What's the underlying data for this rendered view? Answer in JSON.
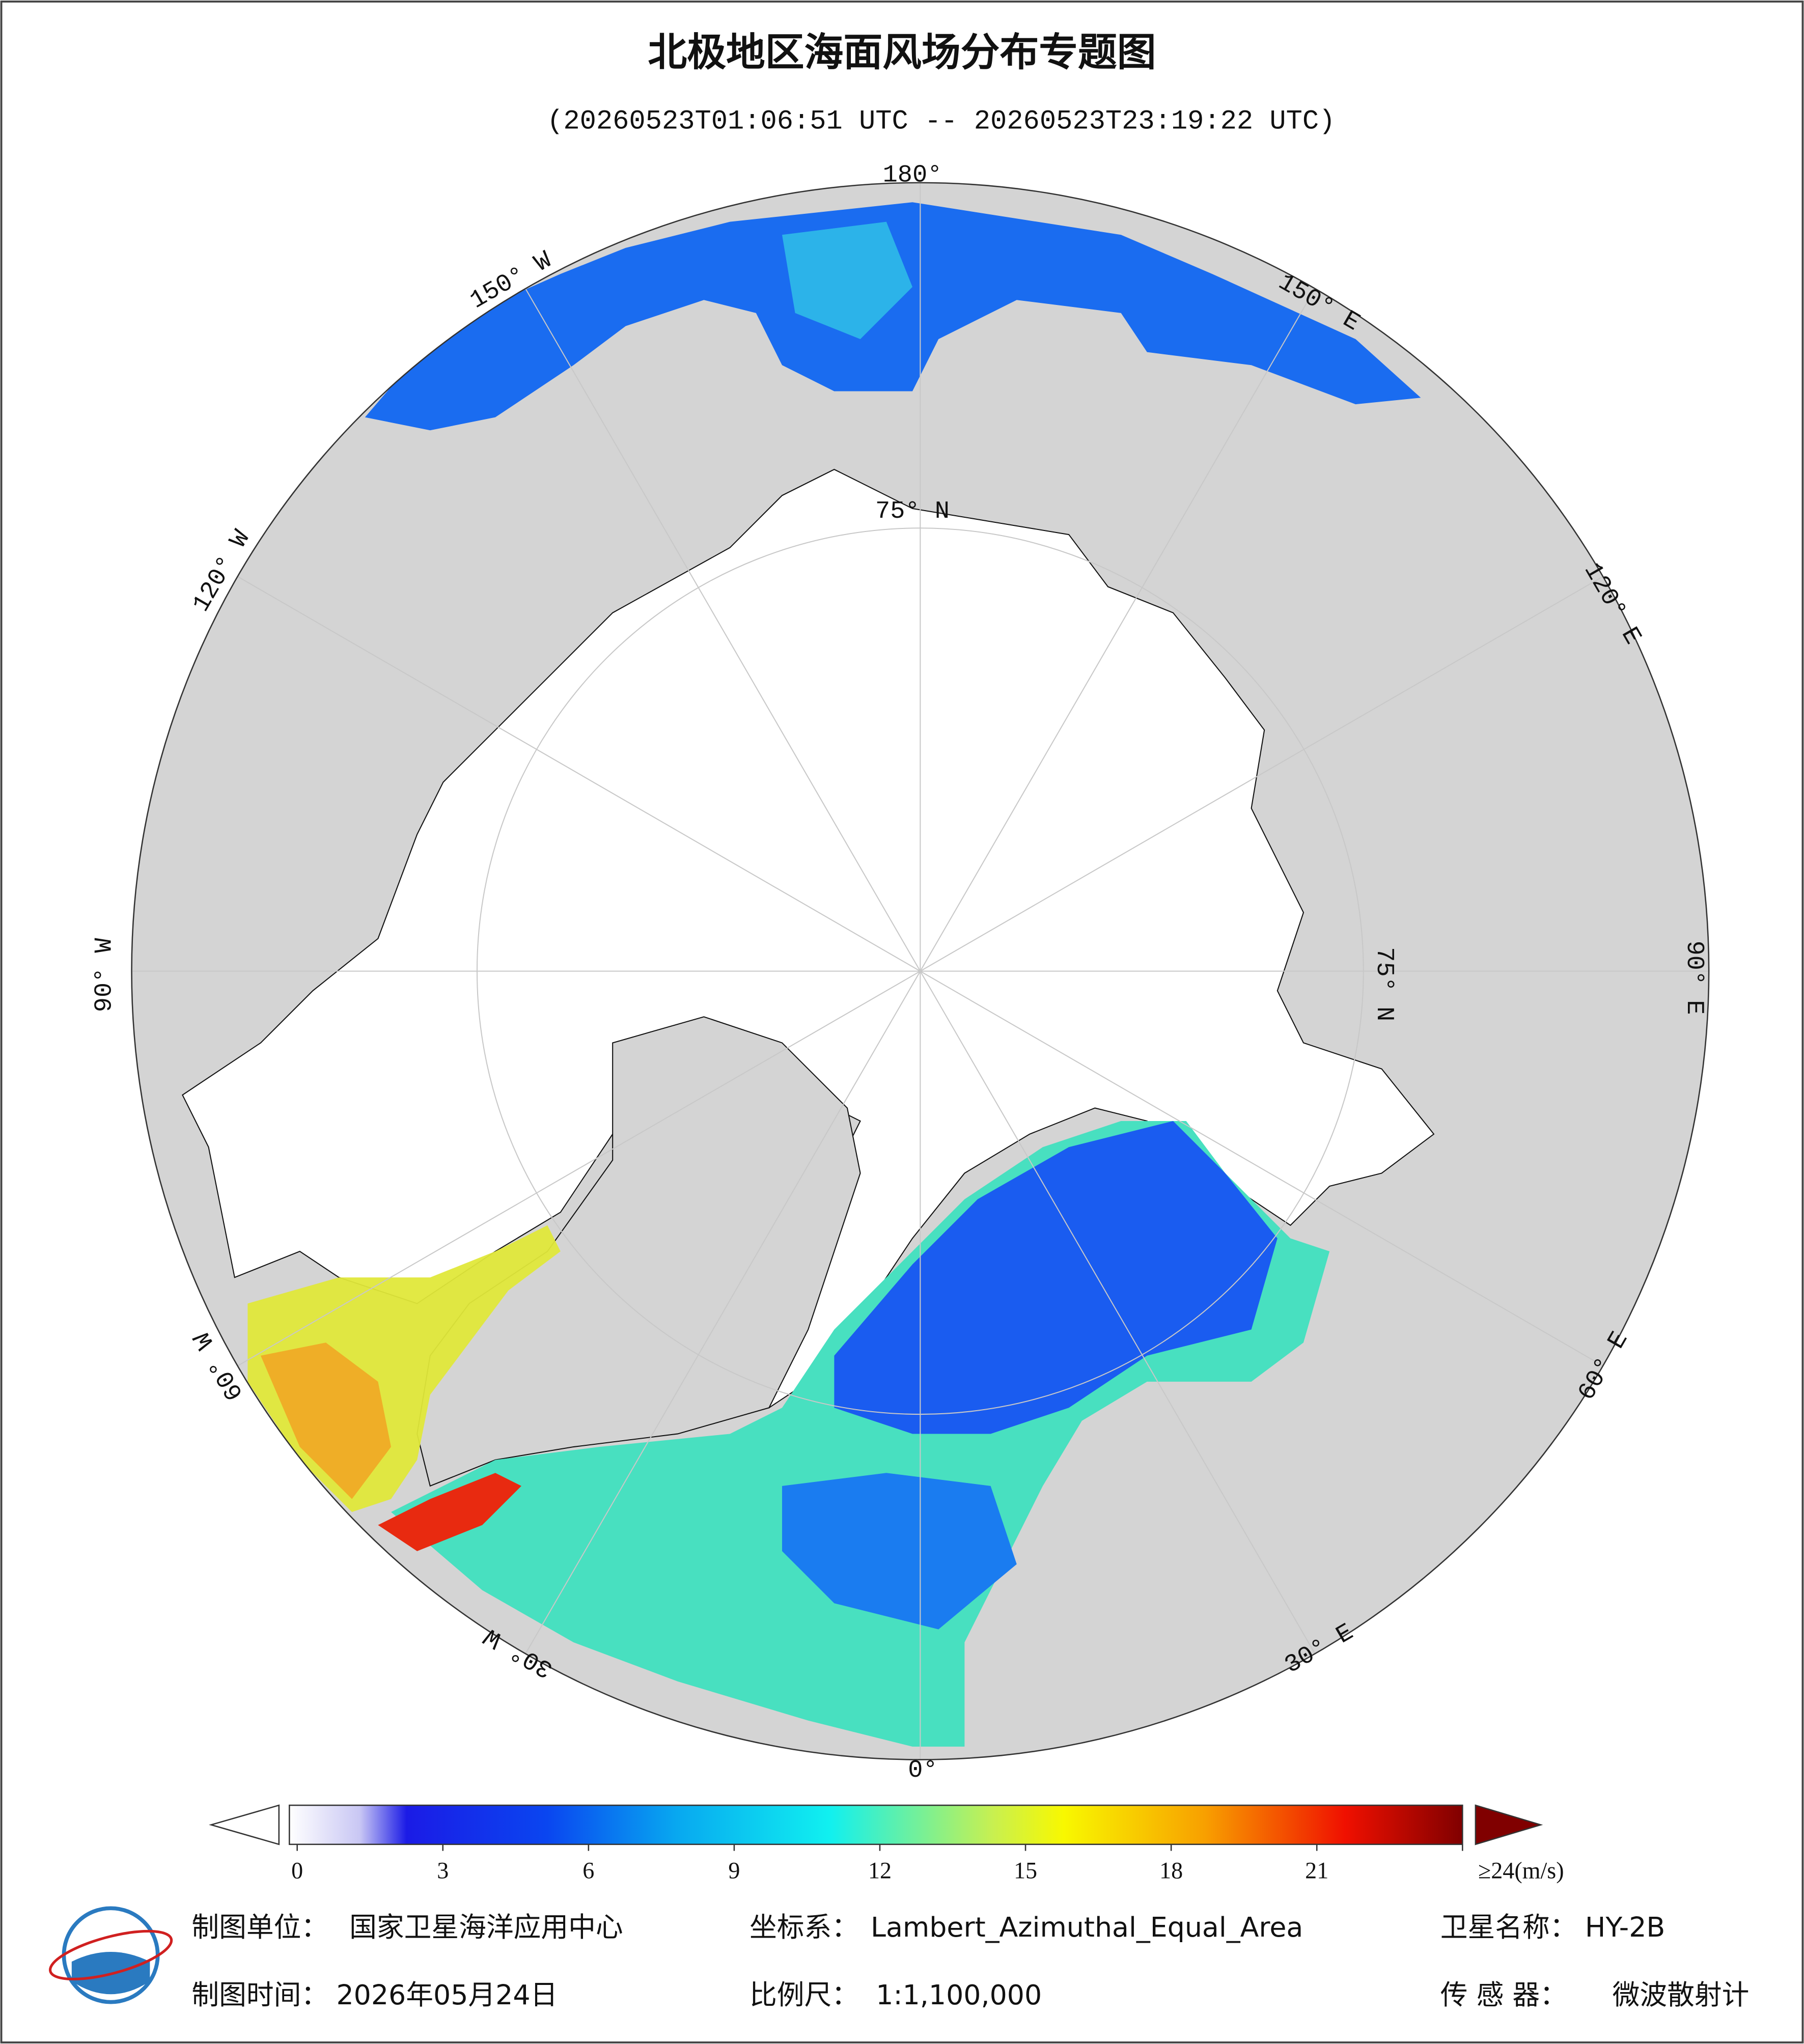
{
  "header": {
    "title": "北极地区海面风场分布专题图",
    "subtitle": "(20260523T01:06:51 UTC -- 20260523T23:19:22 UTC)"
  },
  "map": {
    "longitude_labels": [
      "180°",
      "150° E",
      "120° E",
      "90° E",
      "60° E",
      "30° E",
      "0°",
      "30° W",
      "60° W",
      "90° W",
      "120° W",
      "150° W"
    ],
    "latitude_labels": [
      "75° N",
      "75° N"
    ]
  },
  "colorbar": {
    "range": [
      0,
      24
    ],
    "ticks": [
      0,
      3,
      6,
      9,
      12,
      15,
      18,
      21,
      {
        "value": 24,
        "label": "≥24(m/s)"
      }
    ]
  },
  "footer": [
    {
      "label": "制图单位：",
      "value": "国家卫星海洋应用中心"
    },
    {
      "label": "坐标系：",
      "value": "Lambert_Azimuthal_Equal_Area"
    },
    {
      "label": "卫星名称：",
      "value": "HY-2B"
    },
    {
      "label": "制图时间：",
      "value": "2026年05月24日"
    },
    {
      "label": "比例尺：",
      "value": "1:1,100,000"
    },
    {
      "label": "传 感 器：",
      "value": "微波散射计"
    }
  ]
}
